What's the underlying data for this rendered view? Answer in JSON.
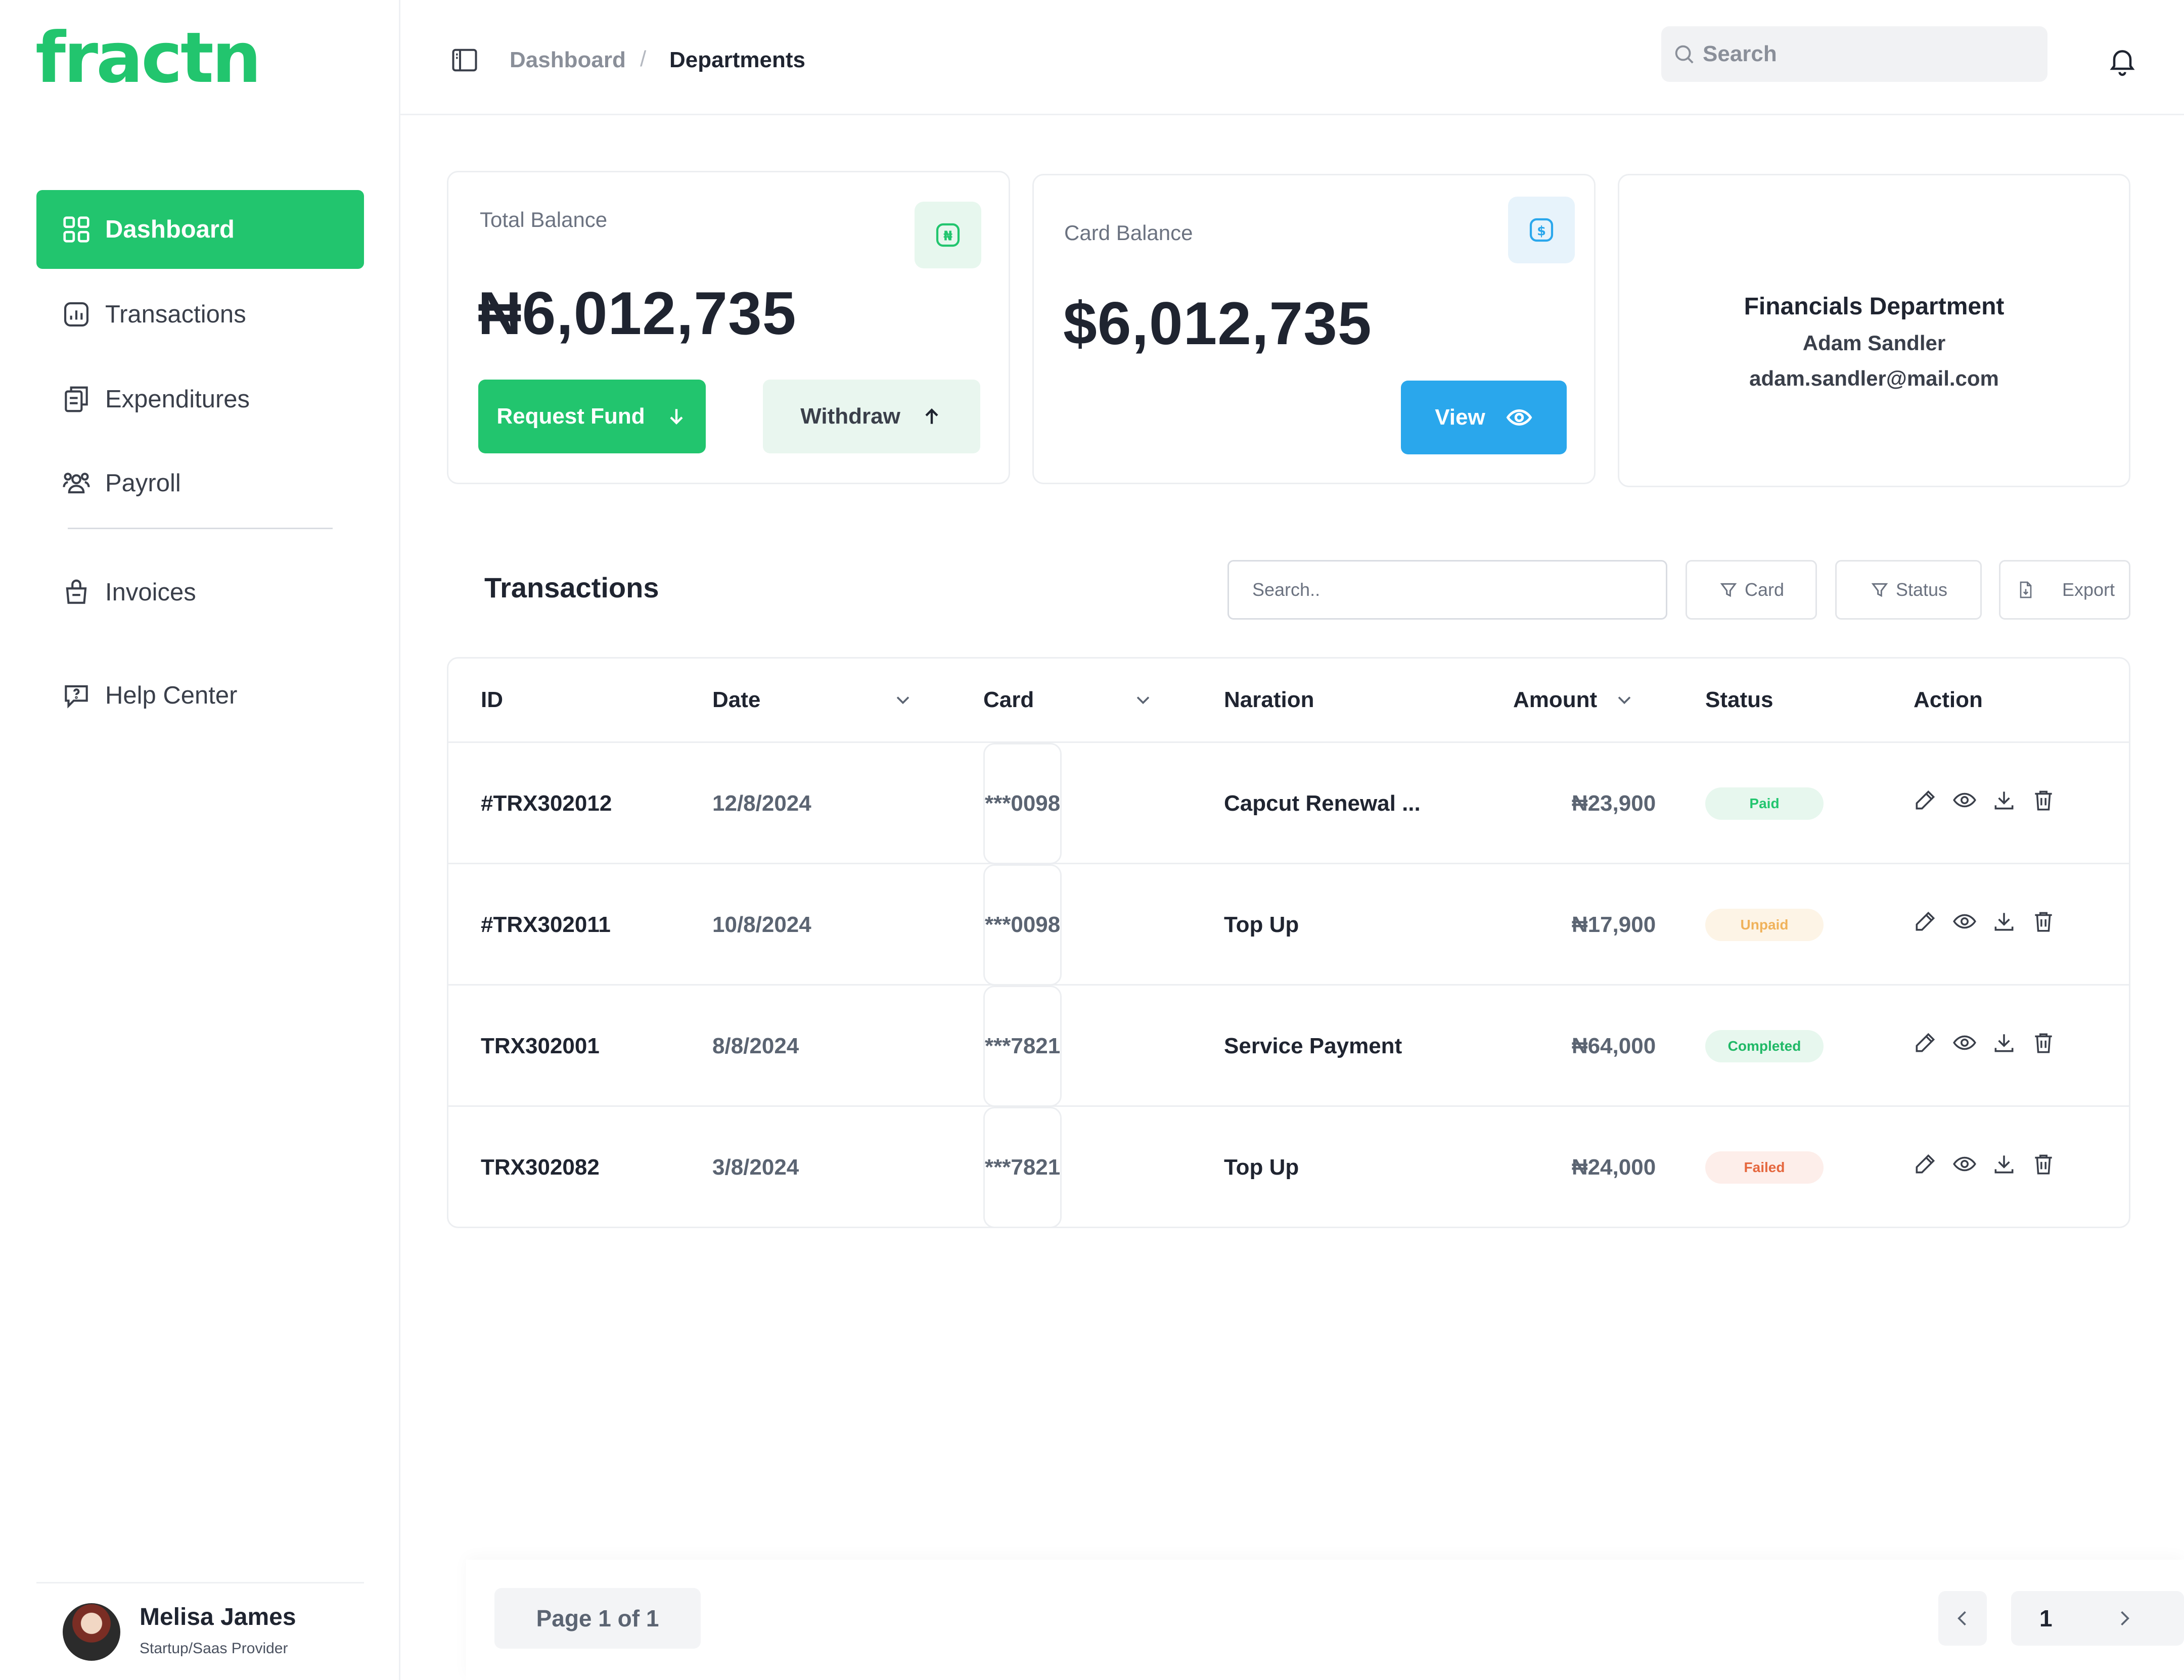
{
  "app": {
    "logo": "fractn"
  },
  "sidebar": {
    "items": [
      {
        "label": "Dashboard"
      },
      {
        "label": "Transactions"
      },
      {
        "label": "Expenditures"
      },
      {
        "label": "Payroll"
      },
      {
        "label": "Invoices"
      },
      {
        "label": "Help Center"
      }
    ],
    "user": {
      "name": "Melisa James",
      "role": "Startup/Saas Provider"
    }
  },
  "header": {
    "breadcrumb": [
      "Dashboard",
      "Departments"
    ],
    "breadcrumb_separator": "/",
    "search_placeholder": "Search"
  },
  "cards": {
    "total_balance": {
      "label": "Total Balance",
      "amount": "₦6,012,735",
      "icon_symbol": "₦",
      "request_label": "Request Fund",
      "withdraw_label": "Withdraw"
    },
    "card_balance": {
      "label": "Card Balance",
      "amount": "$6,012,735",
      "icon_symbol": "$",
      "view_label": "View"
    },
    "department": {
      "title": "Financials Department",
      "manager": "Adam Sandler",
      "email": "adam.sandler@mail.com"
    }
  },
  "transactions": {
    "title": "Transactions",
    "search_placeholder": "Search..",
    "filters": {
      "card": "Card",
      "status": "Status",
      "export": "Export"
    },
    "columns": [
      "ID",
      "Date",
      "Card",
      "Naration",
      "Amount",
      "Status",
      "Action"
    ],
    "rows": [
      {
        "id": "#TRX302012",
        "date": "12/8/2024",
        "card": "***0098",
        "naration": "Capcut Renewal ...",
        "amount": "₦23,900",
        "status": "Paid"
      },
      {
        "id": "#TRX302011",
        "date": "10/8/2024",
        "card": "***0098",
        "naration": "Top Up",
        "amount": "₦17,900",
        "status": "Unpaid"
      },
      {
        "id": "TRX302001",
        "date": "8/8/2024",
        "card": "***7821",
        "naration": "Service Payment",
        "amount": "₦64,000",
        "status": "Completed"
      },
      {
        "id": "TRX302082",
        "date": "3/8/2024",
        "card": "***7821",
        "naration": "Top Up",
        "amount": "₦24,000",
        "status": "Failed"
      }
    ],
    "status_colors": {
      "Paid": {
        "bg": "#e7f7ee",
        "fg": "#22c56e"
      },
      "Unpaid": {
        "bg": "#fdf4e6",
        "fg": "#f0b25a"
      },
      "Completed": {
        "bg": "#e7f7ee",
        "fg": "#1fb866"
      },
      "Failed": {
        "bg": "#fdeeea",
        "fg": "#e5673e"
      }
    }
  },
  "pagination": {
    "label": "Page 1 of 1",
    "current": "1"
  },
  "colors": {
    "brand": "#22c56e",
    "accent_blue": "#2aa7ec"
  }
}
